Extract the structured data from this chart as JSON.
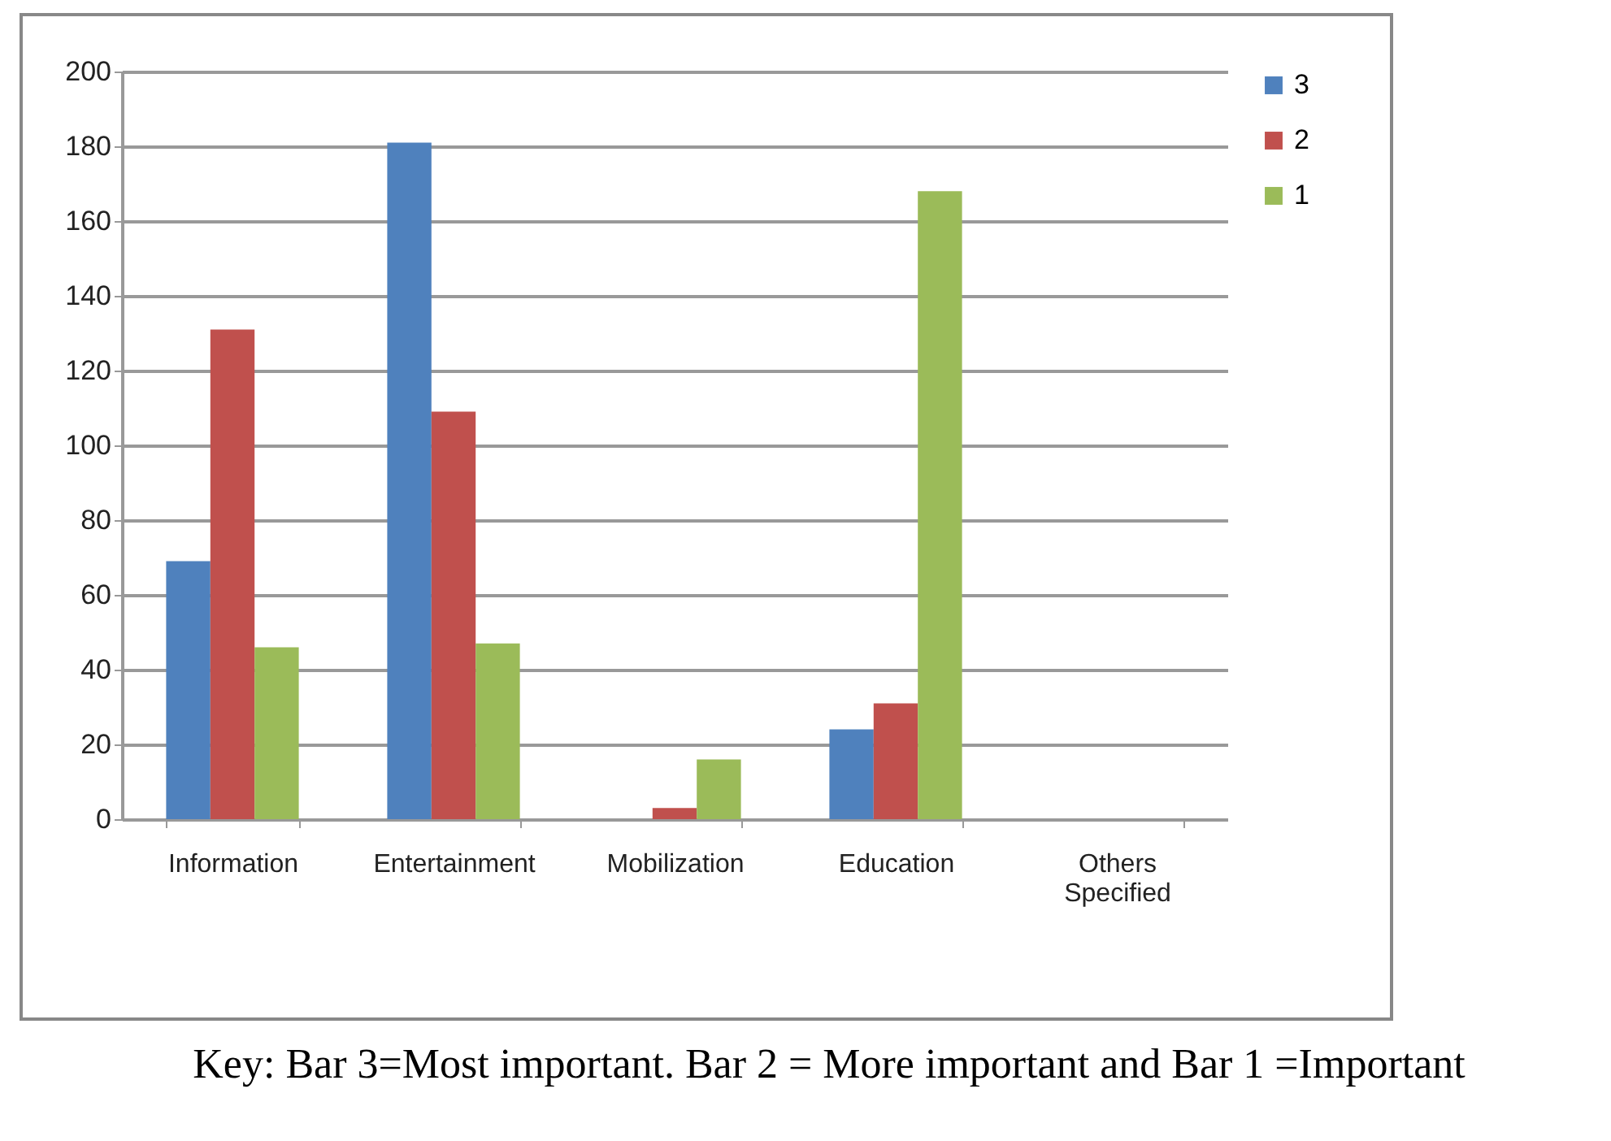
{
  "chart_data": {
    "type": "bar",
    "categories": [
      "Information",
      "Entertainment",
      "Mobilization",
      "Education",
      "Others Specified"
    ],
    "series": [
      {
        "name": "3",
        "color": "#4f81bd",
        "values": [
          69,
          181,
          0,
          24,
          0
        ]
      },
      {
        "name": "2",
        "color": "#c0504d",
        "values": [
          131,
          109,
          3,
          31,
          0
        ]
      },
      {
        "name": "1",
        "color": "#9bbb59",
        "values": [
          46,
          47,
          16,
          168,
          0
        ]
      }
    ],
    "ylim": [
      0,
      200
    ],
    "yticks": [
      0,
      20,
      40,
      60,
      80,
      100,
      120,
      140,
      160,
      180,
      200
    ],
    "grid": "y",
    "legend": "right",
    "annotations": [
      "Key: Bar 3=Most important. Bar 2 = More important and Bar 1 =Important"
    ]
  }
}
